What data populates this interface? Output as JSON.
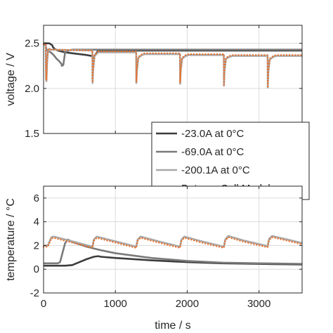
{
  "chart_data": [
    {
      "type": "line",
      "ylabel": "voltage / V",
      "xlim": [
        0,
        3600
      ],
      "ylim": [
        1.5,
        2.7
      ],
      "yticks": [
        "1.5",
        "2.0",
        "2.5"
      ],
      "ytick_values": [
        1.5,
        2.0,
        2.5
      ],
      "grid": true,
      "series": [
        {
          "name": "-23.0A at 0°C",
          "color": "#3d3d3d",
          "x": [
            0,
            80,
            120,
            130,
            150,
            200,
            300,
            400,
            500,
            600,
            670,
            690,
            700,
            760,
            1000,
            1500,
            2000,
            2500,
            3000,
            3600
          ],
          "y": [
            2.5,
            2.5,
            2.48,
            2.46,
            2.44,
            2.42,
            2.4,
            2.39,
            2.38,
            2.37,
            2.36,
            2.34,
            2.35,
            2.42,
            2.42,
            2.42,
            2.42,
            2.42,
            2.42,
            2.42
          ]
        },
        {
          "name": "-69.0A at 0°C",
          "color": "#7a7a7a",
          "x": [
            0,
            30,
            35,
            50,
            100,
            140,
            180,
            220,
            250,
            255,
            275,
            300,
            350,
            400,
            600,
            700,
            760,
            1000,
            1500,
            2000,
            2500,
            3000,
            3600
          ],
          "y": [
            2.48,
            2.48,
            2.45,
            2.42,
            2.4,
            2.37,
            2.33,
            2.3,
            2.27,
            2.25,
            2.26,
            2.4,
            2.42,
            2.43,
            2.43,
            2.43,
            2.43,
            2.43,
            2.43,
            2.43,
            2.43,
            2.43,
            2.43
          ]
        },
        {
          "name": "-200.1A at 0°C",
          "color": "#a9a9a9",
          "x": [
            0,
            30,
            35,
            40,
            50,
            60,
            70,
            80,
            100,
            680,
            682,
            690,
            710,
            760,
            800,
            1290,
            1292,
            1300,
            1320,
            1370,
            1410,
            1900,
            1902,
            1910,
            1930,
            1980,
            2020,
            2510,
            2512,
            2520,
            2540,
            2590,
            2630,
            3120,
            3122,
            3130,
            3150,
            3200,
            3240,
            3600
          ],
          "y": [
            2.48,
            2.48,
            2.1,
            2.08,
            2.3,
            2.4,
            2.43,
            2.44,
            2.43,
            2.42,
            2.06,
            2.2,
            2.36,
            2.4,
            2.4,
            2.4,
            2.06,
            2.2,
            2.34,
            2.37,
            2.38,
            2.38,
            2.05,
            2.2,
            2.33,
            2.36,
            2.37,
            2.37,
            2.03,
            2.2,
            2.33,
            2.35,
            2.36,
            2.36,
            2.01,
            2.18,
            2.32,
            2.35,
            2.36,
            2.36
          ]
        },
        {
          "name": "Batemo Cell Model",
          "color": "#e8702a",
          "dotted": true,
          "x": [
            0,
            30,
            35,
            40,
            50,
            60,
            70,
            80,
            100,
            680,
            682,
            690,
            710,
            760,
            800,
            1290,
            1292,
            1300,
            1320,
            1370,
            1410,
            1900,
            1902,
            1910,
            1930,
            1980,
            2020,
            2510,
            2512,
            2520,
            2540,
            2590,
            2630,
            3120,
            3122,
            3130,
            3150,
            3200,
            3240,
            3600
          ],
          "y": [
            2.49,
            2.49,
            2.12,
            2.09,
            2.31,
            2.41,
            2.43,
            2.44,
            2.43,
            2.42,
            2.08,
            2.21,
            2.37,
            2.41,
            2.41,
            2.41,
            2.07,
            2.21,
            2.35,
            2.38,
            2.39,
            2.39,
            2.06,
            2.21,
            2.34,
            2.37,
            2.38,
            2.38,
            2.04,
            2.21,
            2.34,
            2.36,
            2.37,
            2.37,
            2.02,
            2.19,
            2.33,
            2.36,
            2.37,
            2.37
          ]
        }
      ],
      "legend": "bottom-right",
      "legend_entries": [
        "-23.0A at 0°C",
        "-69.0A at 0°C",
        "-200.1A at 0°C",
        "Batemo Cell Model"
      ]
    },
    {
      "type": "line",
      "xlabel": "time / s",
      "ylabel": "temperature / °C",
      "xlim": [
        0,
        3600
      ],
      "ylim": [
        -2,
        7
      ],
      "xticks": [
        "0",
        "1000",
        "2000",
        "3000"
      ],
      "xtick_values": [
        0,
        1000,
        2000,
        3000
      ],
      "yticks": [
        "-2",
        "0",
        "2",
        "4",
        "6"
      ],
      "ytick_values": [
        -2,
        0,
        2,
        4,
        6
      ],
      "grid": true,
      "series": [
        {
          "name": "-23.0A at 0°C",
          "color": "#3d3d3d",
          "x": [
            0,
            100,
            200,
            300,
            400,
            500,
            600,
            700,
            760,
            800,
            1000,
            1500,
            2000,
            2500,
            3000,
            3600
          ],
          "y": [
            0.3,
            0.3,
            0.3,
            0.3,
            0.35,
            0.6,
            0.85,
            1.05,
            1.1,
            1.05,
            0.95,
            0.75,
            0.6,
            0.5,
            0.45,
            0.4
          ]
        },
        {
          "name": "-69.0A at 0°C",
          "color": "#7a7a7a",
          "x": [
            0,
            200,
            230,
            300,
            340,
            400,
            600,
            800,
            1000,
            1500,
            2000,
            2500,
            3000,
            3600
          ],
          "y": [
            0.5,
            0.5,
            0.6,
            2.2,
            2.5,
            2.3,
            1.9,
            1.6,
            1.35,
            0.95,
            0.7,
            0.55,
            0.5,
            0.45
          ]
        },
        {
          "name": "-200.1A at 0°C",
          "color": "#a9a9a9",
          "x": [
            0,
            60,
            80,
            110,
            140,
            400,
            680,
            682,
            700,
            740,
            1000,
            1290,
            1292,
            1310,
            1350,
            1600,
            1900,
            1902,
            1920,
            1960,
            2200,
            2510,
            2512,
            2530,
            2570,
            2800,
            3120,
            3122,
            3140,
            3180,
            3400,
            3600
          ],
          "y": [
            2.0,
            2.0,
            2.3,
            2.7,
            2.75,
            2.35,
            1.9,
            1.95,
            2.5,
            2.75,
            2.35,
            1.9,
            1.95,
            2.5,
            2.75,
            2.35,
            1.9,
            1.95,
            2.5,
            2.75,
            2.35,
            1.9,
            1.95,
            2.5,
            2.8,
            2.4,
            1.95,
            2.0,
            2.55,
            2.8,
            2.5,
            2.2
          ]
        },
        {
          "name": "Batemo Cell Model",
          "color": "#e8702a",
          "dotted": true,
          "x": [
            0,
            60,
            80,
            110,
            140,
            400,
            680,
            682,
            700,
            740,
            1000,
            1290,
            1292,
            1310,
            1350,
            1600,
            1900,
            1902,
            1920,
            1960,
            2200,
            2510,
            2512,
            2530,
            2570,
            2800,
            3120,
            3122,
            3140,
            3180,
            3400,
            3600
          ],
          "y": [
            1.9,
            1.9,
            2.2,
            2.6,
            2.65,
            2.25,
            1.8,
            1.85,
            2.4,
            2.65,
            2.25,
            1.8,
            1.85,
            2.4,
            2.65,
            2.25,
            1.8,
            1.85,
            2.4,
            2.65,
            2.25,
            1.8,
            1.85,
            2.4,
            2.7,
            2.3,
            1.85,
            1.9,
            2.45,
            2.7,
            2.4,
            2.1
          ]
        }
      ]
    }
  ]
}
